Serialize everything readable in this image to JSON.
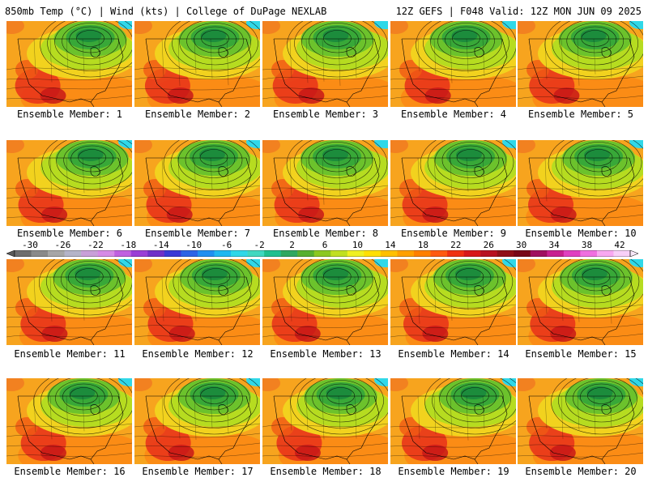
{
  "header": {
    "left": "850mb Temp (°C) | Wind (kts) | College of DuPage NEXLAB",
    "right": "12Z GEFS | F048 Valid: 12Z MON JUN 09 2025"
  },
  "panels": [
    {
      "label": "Ensemble Member: 1"
    },
    {
      "label": "Ensemble Member: 2"
    },
    {
      "label": "Ensemble Member: 3"
    },
    {
      "label": "Ensemble Member: 4"
    },
    {
      "label": "Ensemble Member: 5"
    },
    {
      "label": "Ensemble Member: 6"
    },
    {
      "label": "Ensemble Member: 7"
    },
    {
      "label": "Ensemble Member: 8"
    },
    {
      "label": "Ensemble Member: 9"
    },
    {
      "label": "Ensemble Member: 10"
    },
    {
      "label": "Ensemble Member: 11"
    },
    {
      "label": "Ensemble Member: 12"
    },
    {
      "label": "Ensemble Member: 13"
    },
    {
      "label": "Ensemble Member: 14"
    },
    {
      "label": "Ensemble Member: 15"
    },
    {
      "label": "Ensemble Member: 16"
    },
    {
      "label": "Ensemble Member: 17"
    },
    {
      "label": "Ensemble Member: 18"
    },
    {
      "label": "Ensemble Member: 19"
    },
    {
      "label": "Ensemble Member: 20"
    }
  ],
  "colorbar": {
    "tick_labels": [
      "-30",
      "-26",
      "-22",
      "-18",
      "-14",
      "-10",
      "-6",
      "-2",
      "2",
      "6",
      "10",
      "14",
      "18",
      "22",
      "26",
      "30",
      "34",
      "38",
      "42"
    ],
    "colors": [
      "#6e6e6e",
      "#8a8a8a",
      "#a6a6a6",
      "#b4b4c8",
      "#c8a0d8",
      "#d68ae6",
      "#c060e0",
      "#9a3ed6",
      "#7030c8",
      "#3a3ad6",
      "#2c64e6",
      "#2090f0",
      "#20b8f0",
      "#30d8e8",
      "#40d8c0",
      "#20c090",
      "#30a860",
      "#58b030",
      "#8cc820",
      "#c0e020",
      "#f0f020",
      "#ffe000",
      "#ffc000",
      "#ffa000",
      "#ff8000",
      "#ff5a10",
      "#f03010",
      "#d81818",
      "#b81020",
      "#901018",
      "#780818",
      "#a01060",
      "#c82090",
      "#e040c0",
      "#f070e0",
      "#f8a8f0",
      "#f8d0f8"
    ]
  }
}
